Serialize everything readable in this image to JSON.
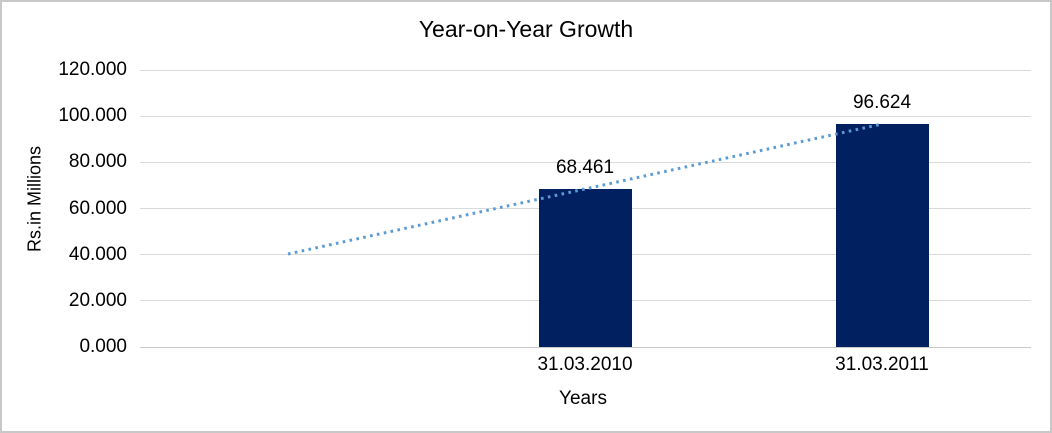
{
  "chart_data": {
    "type": "bar",
    "title": "Year-on-Year Growth",
    "xlabel": "Years",
    "ylabel": "Rs.in Millions",
    "categories": [
      "31.03.2010",
      "31.03.2011"
    ],
    "series": [
      {
        "name": "Year-on-Year Growth",
        "values": [
          68.461,
          96.624
        ]
      }
    ],
    "data_labels": [
      "68.461",
      "96.624"
    ],
    "ytick_labels": [
      "0.000",
      "20.000",
      "40.000",
      "60.000",
      "80.000",
      "100.000",
      "120.000"
    ],
    "ytick_values": [
      0,
      20,
      40,
      60,
      80,
      100,
      120
    ],
    "ylim": [
      0,
      120
    ],
    "grid": "horizontal",
    "legend": "none",
    "bar_color": "#002060",
    "gridline_color": "#d9d9d9",
    "axis_line_color": "#c9c9c9",
    "text_color": "#000000",
    "trendline": {
      "type": "linear",
      "style": "dotted",
      "color": "#5b9bd5",
      "points": [
        {
          "period": 0,
          "value": 40.3
        },
        {
          "period": 2,
          "value": 96.6
        }
      ]
    }
  }
}
